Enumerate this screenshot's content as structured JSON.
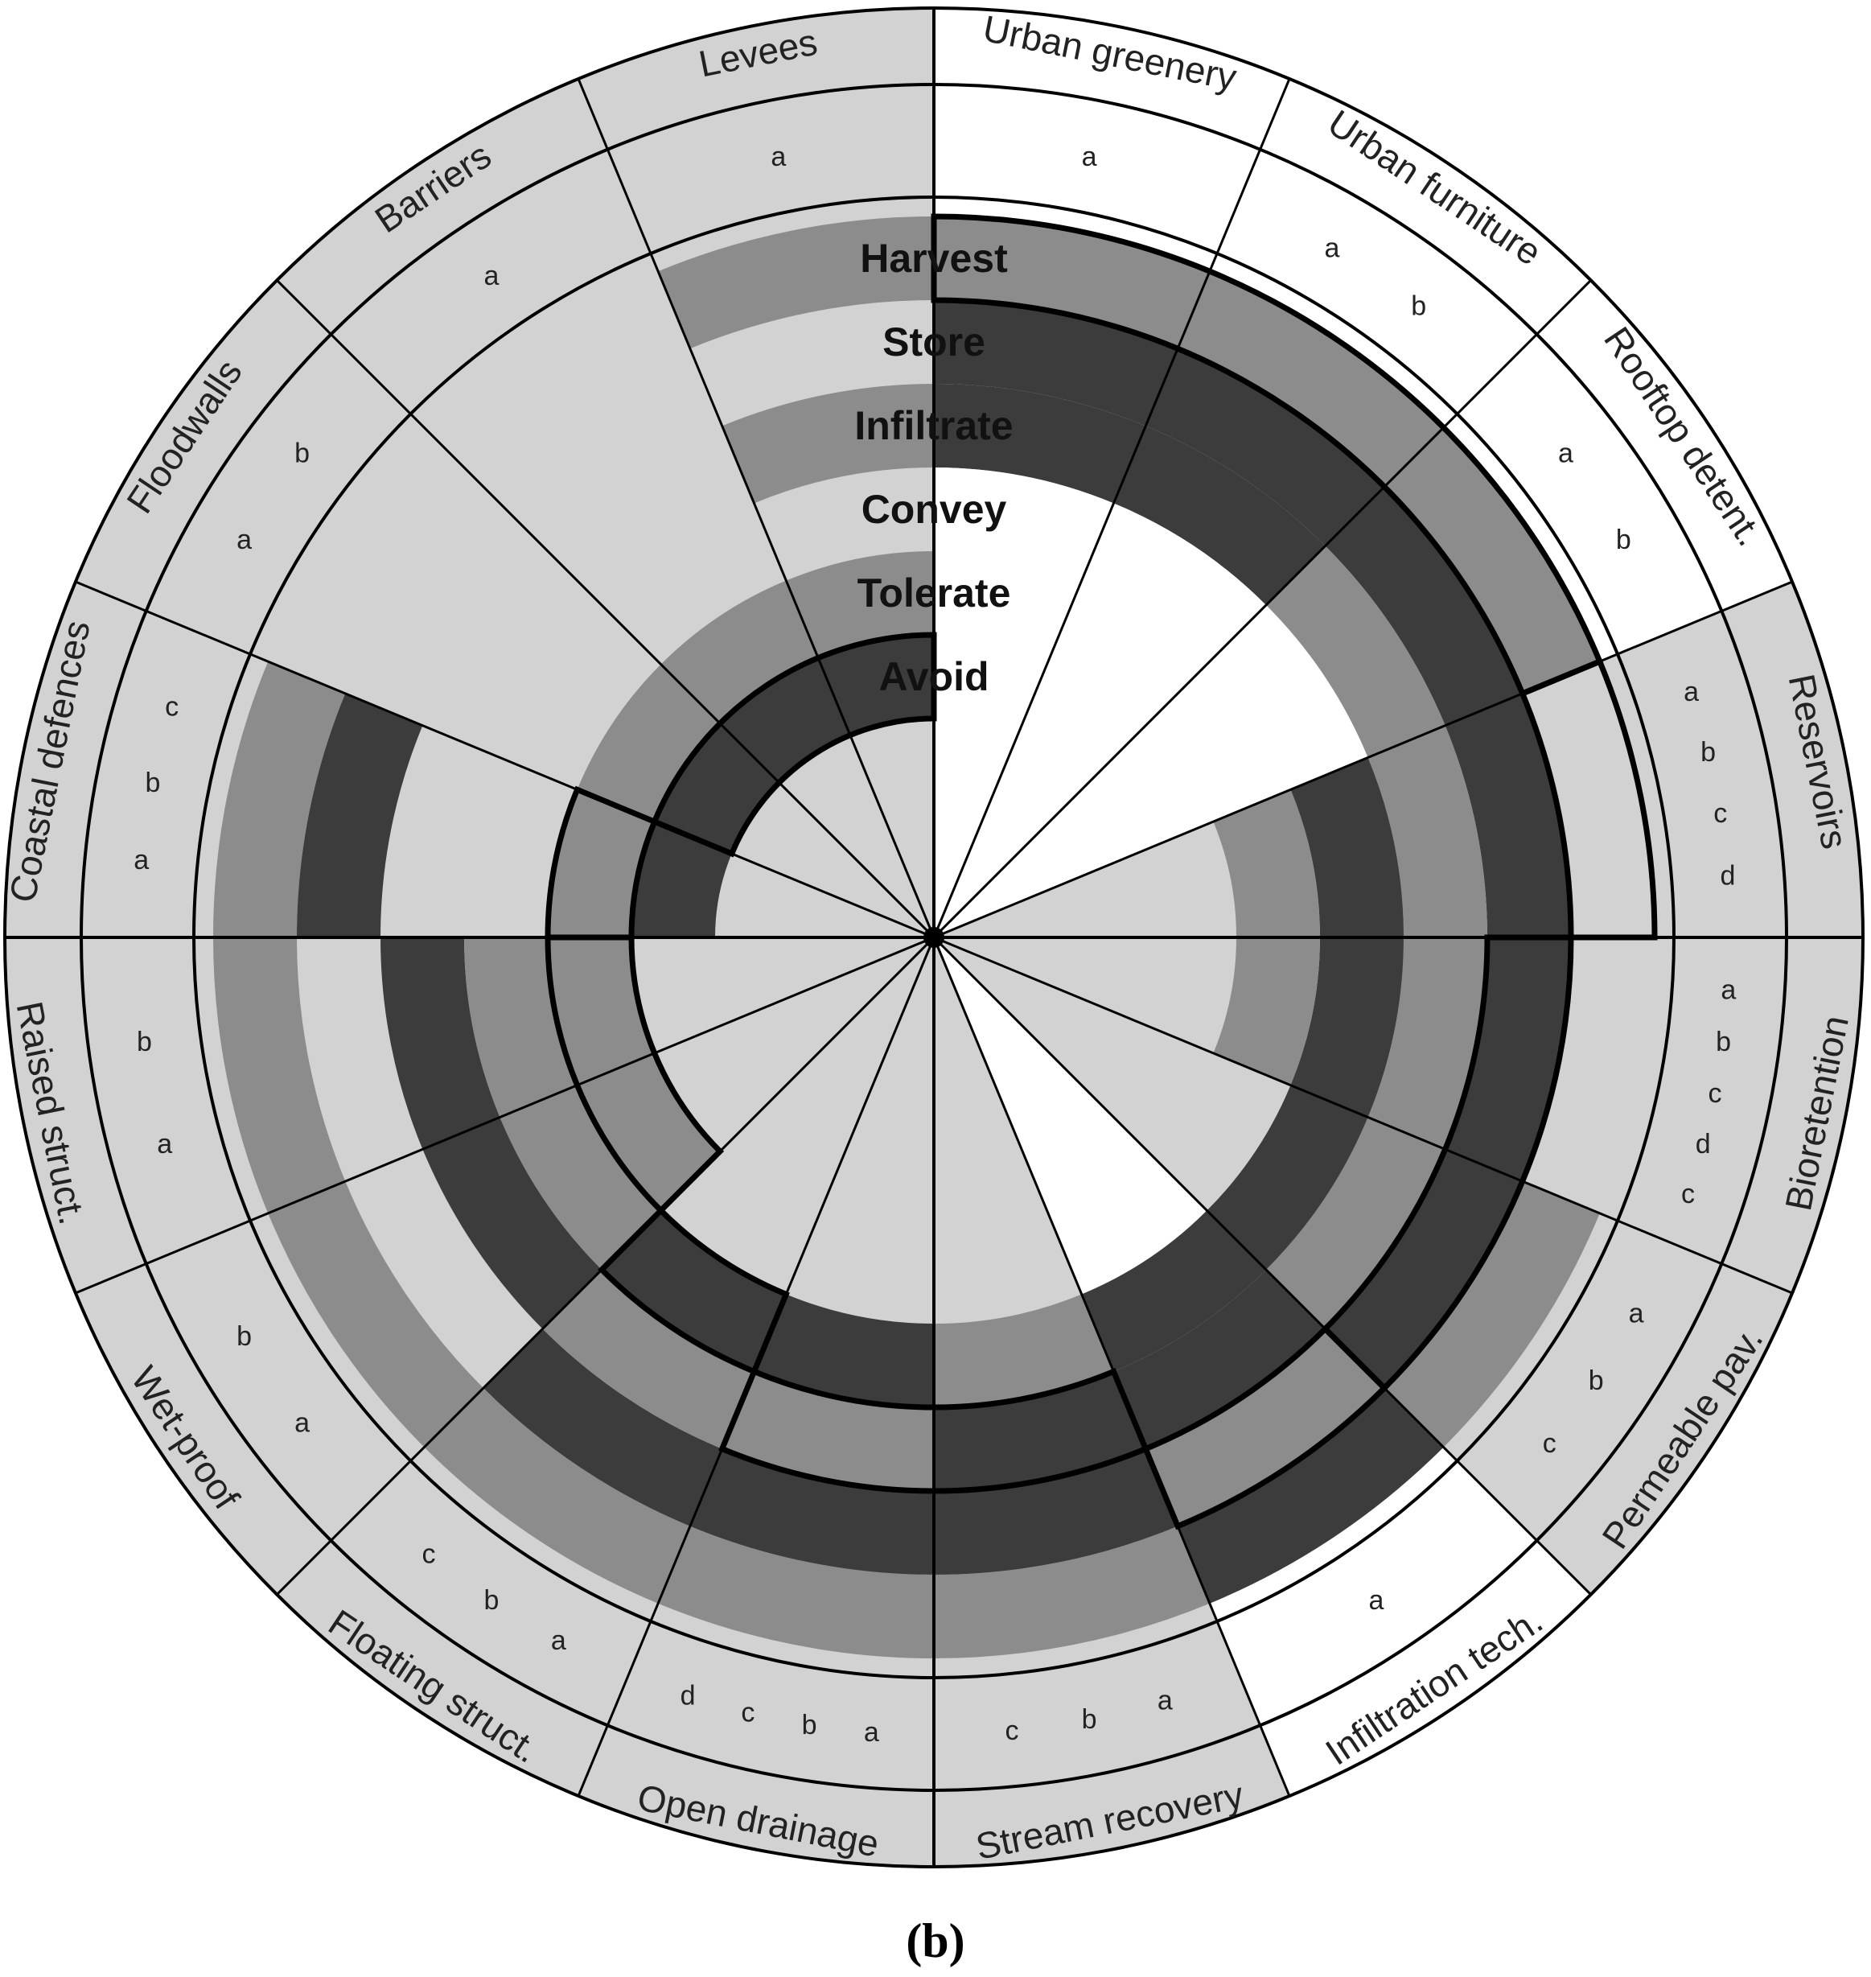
{
  "diagram": {
    "caption": "(b)",
    "ring_labels": [
      "Harvest",
      "Store",
      "Infiltrate",
      "Convey",
      "Tolerate",
      "Avoid"
    ],
    "colors": {
      "light": "#d2d2d2",
      "mid": "#8c8c8c",
      "dark": "#3c3c3c",
      "white": "#ffffff",
      "line": "#000000"
    },
    "categories": [
      {
        "name": "Urban greenery",
        "shade": "white",
        "subs": [
          "a"
        ]
      },
      {
        "name": "Urban furniture",
        "shade": "white",
        "subs": [
          "a",
          "b"
        ]
      },
      {
        "name": "Rooftop detent.",
        "shade": "white",
        "subs": [
          "a",
          "b"
        ]
      },
      {
        "name": "Reservoirs",
        "shade": "light",
        "subs": [
          "a",
          "b",
          "c",
          "d"
        ]
      },
      {
        "name": "Bioretention",
        "shade": "light",
        "subs": [
          "a",
          "b",
          "c",
          "d",
          "c"
        ]
      },
      {
        "name": "Permeable pav.",
        "shade": "light",
        "subs": [
          "a",
          "b",
          "c"
        ]
      },
      {
        "name": "Infiltration tech.",
        "shade": "white",
        "subs": [
          "a"
        ]
      },
      {
        "name": "Stream recovery",
        "shade": "light",
        "subs": [
          "a",
          "b",
          "c"
        ]
      },
      {
        "name": "Open drainage",
        "shade": "light",
        "subs": [
          "a",
          "b",
          "c",
          "d"
        ]
      },
      {
        "name": "Floating struct.",
        "shade": "light",
        "subs": [
          "a",
          "b",
          "c"
        ]
      },
      {
        "name": "Wet-proof",
        "shade": "light",
        "subs": [
          "a",
          "b"
        ]
      },
      {
        "name": "Raised struct.",
        "shade": "light",
        "subs": [
          "a",
          "b"
        ]
      },
      {
        "name": "Coastal defences",
        "shade": "light",
        "subs": [
          "a",
          "b",
          "c"
        ]
      },
      {
        "name": "Floodwalls",
        "shade": "light",
        "subs": [
          "a",
          "b"
        ]
      },
      {
        "name": "Barriers",
        "shade": "light",
        "subs": [
          "a"
        ]
      },
      {
        "name": "Levees",
        "shade": "light",
        "subs": [
          "a"
        ]
      }
    ]
  }
}
